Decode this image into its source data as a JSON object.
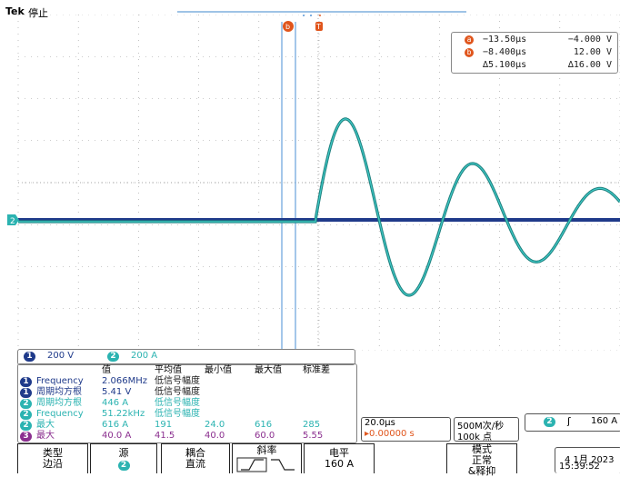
{
  "header": {
    "brand": "Tek",
    "state": "停止"
  },
  "ground_marker": "2",
  "cursor_markers": {
    "a": "a",
    "b": "b",
    "trigger": "T"
  },
  "cursor_readout": {
    "a": {
      "label": "a",
      "time": "−13.50µs",
      "value": "−4.000 V"
    },
    "b": {
      "label": "b",
      "time": "−8.400µs",
      "value": "12.00 V"
    },
    "delta": {
      "time": "∆5.100µs",
      "value": "∆16.00 V"
    }
  },
  "channel_scales": {
    "ch1": {
      "num": "1",
      "scale": "200 V"
    },
    "ch2": {
      "num": "2",
      "scale": "200 A"
    }
  },
  "measurements": {
    "headers": [
      "值",
      "平均值",
      "最小值",
      "最大值",
      "标准差"
    ],
    "rows": [
      {
        "ch": "1",
        "name": "Frequency",
        "value": "2.066MHz",
        "mean": "低信号幅度",
        "min": "",
        "max": "",
        "std": ""
      },
      {
        "ch": "1",
        "name": "周期均方根",
        "value": "5.41 V",
        "mean": "低信号幅度",
        "min": "",
        "max": "",
        "std": ""
      },
      {
        "ch": "2",
        "name": "周期均方根",
        "value": "446 A",
        "mean": "低信号幅度",
        "min": "",
        "max": "",
        "std": ""
      },
      {
        "ch": "2",
        "name": "Frequency",
        "value": "51.22kHz",
        "mean": "低信号幅度",
        "min": "",
        "max": "",
        "std": ""
      },
      {
        "ch": "2",
        "name": "最大",
        "value": "616 A",
        "mean": "191",
        "min": "24.0",
        "max": "616",
        "std": "285"
      },
      {
        "ch": "3",
        "name": "最大",
        "value": "40.0 A",
        "mean": "41.5",
        "min": "40.0",
        "max": "60.0",
        "std": "5.55"
      }
    ]
  },
  "timebase": {
    "scale": "20.0µs",
    "delay": "▸0.00000 s",
    "sample_rate": "500M次/秒",
    "record": "100k 点"
  },
  "trigger_info": {
    "ch": "2",
    "slope": "ʃ",
    "level": "160 A"
  },
  "menu": {
    "type": {
      "top": "类型",
      "bottom": "边沿"
    },
    "source": {
      "top": "源",
      "bottom": "2"
    },
    "coupling": {
      "top": "耦合",
      "bottom": "直流"
    },
    "slope": {
      "top": "斜率"
    },
    "level": {
      "top": "电平",
      "bottom": "160 A"
    },
    "mode": {
      "top": "模式",
      "mid": "正常",
      "bottom": "&释抑"
    }
  },
  "datetime": {
    "date": "4 1月 2023",
    "time": "15:39:52"
  },
  "colors": {
    "ch1": "#1f3a8a",
    "ch2": "#2bb3b1",
    "ch3": "#8b2f8f",
    "cursor": "#e0551c",
    "cursor_line": "#4a8fd6",
    "grid": "#9a9a9a"
  }
}
